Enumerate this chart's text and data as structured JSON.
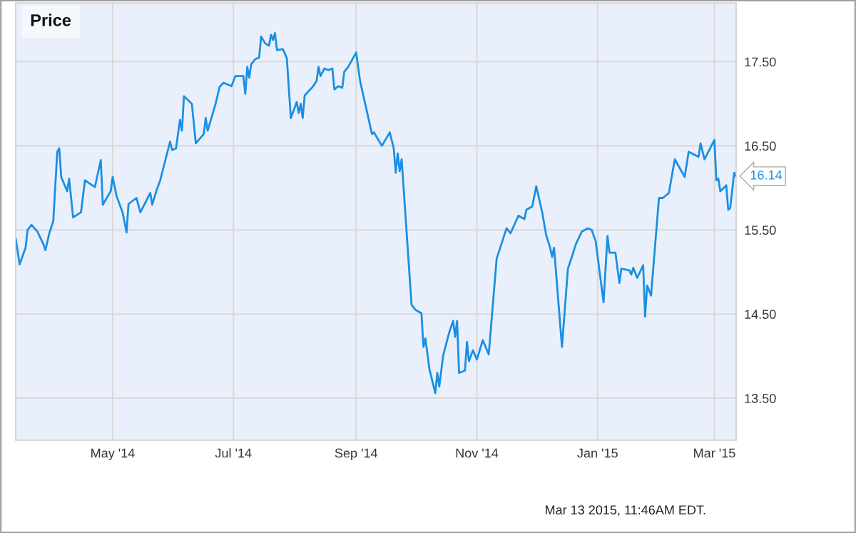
{
  "chart_data": {
    "type": "line",
    "title": "Price",
    "annotations": [
      {
        "text": "16.14",
        "x": "2015-03-12",
        "y": 16.14
      },
      "Mar 13 2015, 11:46AM EDT."
    ],
    "xlim": [
      "2014-03-13",
      "2015-03-12"
    ],
    "ylim": [
      13.0,
      18.2
    ],
    "xticks": [
      {
        "value": "2014-05-01",
        "label": "May '14"
      },
      {
        "value": "2014-07-01",
        "label": "Jul '14"
      },
      {
        "value": "2014-09-01",
        "label": "Sep '14"
      },
      {
        "value": "2014-11-01",
        "label": "Nov '14"
      },
      {
        "value": "2015-01-01",
        "label": "Jan '15"
      },
      {
        "value": "2015-03-01",
        "label": "Mar '15"
      }
    ],
    "yticks": [
      {
        "value": 13.5,
        "label": "13.50"
      },
      {
        "value": 14.5,
        "label": "14.50"
      },
      {
        "value": 15.5,
        "label": "15.50"
      },
      {
        "value": 16.5,
        "label": "16.50"
      },
      {
        "value": 17.5,
        "label": "17.50"
      }
    ],
    "grid": true,
    "legend": false,
    "marker": "none",
    "line_style": "solid",
    "x": [
      "2014-03-13",
      "2014-03-15",
      "2014-03-18",
      "2014-03-19",
      "2014-03-21",
      "2014-03-24",
      "2014-03-27",
      "2014-03-28",
      "2014-03-30",
      "2014-04-01",
      "2014-04-03",
      "2014-04-04",
      "2014-04-05",
      "2014-04-08",
      "2014-04-09",
      "2014-04-11",
      "2014-04-15",
      "2014-04-17",
      "2014-04-22",
      "2014-04-25",
      "2014-04-26",
      "2014-04-30",
      "2014-05-01",
      "2014-05-03",
      "2014-05-06",
      "2014-05-08",
      "2014-05-09",
      "2014-05-13",
      "2014-05-15",
      "2014-05-20",
      "2014-05-21",
      "2014-05-23",
      "2014-05-25",
      "2014-05-30",
      "2014-05-31",
      "2014-06-02",
      "2014-06-04",
      "2014-06-05",
      "2014-06-06",
      "2014-06-10",
      "2014-06-12",
      "2014-06-16",
      "2014-06-17",
      "2014-06-18",
      "2014-06-22",
      "2014-06-24",
      "2014-06-26",
      "2014-06-30",
      "2014-07-02",
      "2014-07-06",
      "2014-07-07",
      "2014-07-08",
      "2014-07-09",
      "2014-07-10",
      "2014-07-12",
      "2014-07-14",
      "2014-07-15",
      "2014-07-17",
      "2014-07-19",
      "2014-07-20",
      "2014-07-21",
      "2014-07-22",
      "2014-07-23",
      "2014-07-26",
      "2014-07-28",
      "2014-07-30",
      "2014-08-02",
      "2014-08-03",
      "2014-08-04",
      "2014-08-05",
      "2014-08-06",
      "2014-08-10",
      "2014-08-12",
      "2014-08-13",
      "2014-08-14",
      "2014-08-16",
      "2014-08-18",
      "2014-08-20",
      "2014-08-21",
      "2014-08-23",
      "2014-08-25",
      "2014-08-26",
      "2014-08-28",
      "2014-09-01",
      "2014-09-03",
      "2014-09-07",
      "2014-09-09",
      "2014-09-10",
      "2014-09-14",
      "2014-09-18",
      "2014-09-20",
      "2014-09-21",
      "2014-09-22",
      "2014-09-23",
      "2014-09-24",
      "2014-09-29",
      "2014-10-01",
      "2014-10-04",
      "2014-10-05",
      "2014-10-06",
      "2014-10-08",
      "2014-10-11",
      "2014-10-12",
      "2014-10-13",
      "2014-10-15",
      "2014-10-18",
      "2014-10-20",
      "2014-10-21",
      "2014-10-22",
      "2014-10-23",
      "2014-10-26",
      "2014-10-27",
      "2014-10-28",
      "2014-10-30",
      "2014-11-01",
      "2014-11-04",
      "2014-11-07",
      "2014-11-11",
      "2014-11-16",
      "2014-11-18",
      "2014-11-22",
      "2014-11-25",
      "2014-11-26",
      "2014-11-29",
      "2014-12-01",
      "2014-12-04",
      "2014-12-06",
      "2014-12-08",
      "2014-12-09",
      "2014-12-10",
      "2014-12-14",
      "2014-12-17",
      "2014-12-19",
      "2014-12-21",
      "2014-12-24",
      "2014-12-27",
      "2014-12-29",
      "2014-12-31",
      "2015-01-04",
      "2015-01-06",
      "2015-01-07",
      "2015-01-10",
      "2015-01-12",
      "2015-01-13",
      "2015-01-17",
      "2015-01-18",
      "2015-01-19",
      "2015-01-21",
      "2015-01-24",
      "2015-01-25",
      "2015-01-26",
      "2015-01-28",
      "2015-02-01",
      "2015-02-03",
      "2015-02-06",
      "2015-02-09",
      "2015-02-14",
      "2015-02-16",
      "2015-02-21",
      "2015-02-22",
      "2015-02-24",
      "2015-03-01",
      "2015-03-02",
      "2015-03-03",
      "2015-03-04",
      "2015-03-07",
      "2015-03-08",
      "2015-03-09",
      "2015-03-11",
      "2015-03-12"
    ],
    "series": [
      {
        "color": "#1a8fe3",
        "values": [
          15.4,
          15.09,
          15.29,
          15.5,
          15.56,
          15.48,
          15.33,
          15.26,
          15.46,
          15.61,
          16.43,
          16.47,
          16.13,
          15.96,
          16.11,
          15.65,
          15.71,
          16.09,
          16.01,
          16.33,
          15.8,
          15.96,
          16.13,
          15.9,
          15.71,
          15.47,
          15.81,
          15.88,
          15.71,
          15.94,
          15.8,
          15.96,
          16.09,
          16.55,
          16.45,
          16.47,
          16.81,
          16.68,
          17.09,
          17.0,
          16.53,
          16.64,
          16.83,
          16.68,
          17.0,
          17.2,
          17.25,
          17.21,
          17.33,
          17.33,
          17.12,
          17.44,
          17.31,
          17.47,
          17.53,
          17.55,
          17.8,
          17.72,
          17.69,
          17.82,
          17.76,
          17.84,
          17.64,
          17.65,
          17.54,
          16.83,
          17.02,
          16.89,
          17.0,
          16.83,
          17.1,
          17.2,
          17.27,
          17.44,
          17.33,
          17.42,
          17.4,
          17.42,
          17.17,
          17.21,
          17.19,
          17.38,
          17.44,
          17.61,
          17.27,
          16.85,
          16.64,
          16.66,
          16.5,
          16.66,
          16.47,
          16.18,
          16.41,
          16.2,
          16.34,
          14.61,
          14.55,
          14.51,
          14.11,
          14.21,
          13.85,
          13.56,
          13.8,
          13.64,
          14.01,
          14.28,
          14.42,
          14.23,
          14.42,
          13.8,
          13.83,
          14.17,
          13.94,
          14.07,
          13.96,
          14.19,
          14.02,
          15.16,
          15.52,
          15.46,
          15.67,
          15.63,
          15.74,
          15.78,
          16.02,
          15.71,
          15.44,
          15.29,
          15.18,
          15.29,
          14.11,
          15.04,
          15.18,
          15.33,
          15.48,
          15.52,
          15.5,
          15.37,
          14.64,
          15.43,
          15.23,
          15.23,
          14.87,
          15.04,
          15.02,
          14.97,
          15.05,
          14.93,
          15.08,
          14.47,
          14.84,
          14.72,
          15.88,
          15.88,
          15.94,
          16.34,
          16.13,
          16.43,
          16.37,
          16.53,
          16.34,
          16.57,
          16.09,
          16.11,
          15.96,
          16.03,
          15.74,
          15.76,
          16.18,
          16.14
        ]
      }
    ]
  }
}
